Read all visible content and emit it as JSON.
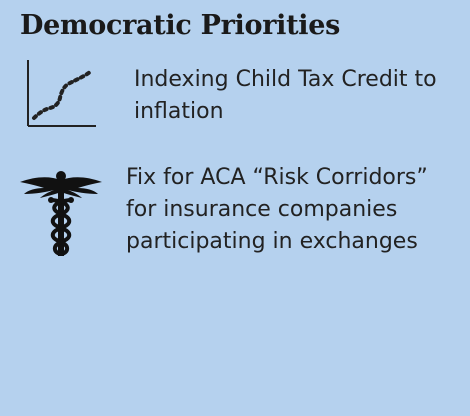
{
  "panel": {
    "title": "Democratic Priorities",
    "background_color": "#b5d1ee"
  },
  "items": [
    {
      "icon": "trend-chart-icon",
      "lines": [
        "Indexing Child Tax Credit to",
        "inflation"
      ]
    },
    {
      "icon": "caduceus-icon",
      "lines": [
        "Fix for ACA “Risk Corridors”",
        "for insurance companies",
        "participating in exchanges"
      ]
    }
  ]
}
